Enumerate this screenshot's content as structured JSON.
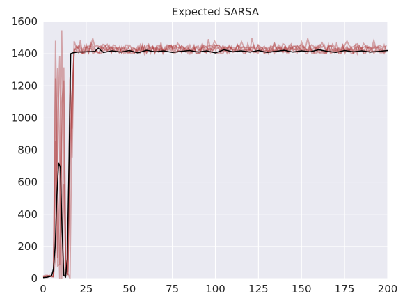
{
  "chart_data": {
    "type": "line",
    "title": "Expected SARSA",
    "xlabel": "",
    "ylabel": "",
    "xlim": [
      0,
      200
    ],
    "ylim": [
      0,
      1600
    ],
    "xticks": [
      "0",
      "25",
      "50",
      "75",
      "100",
      "125",
      "150",
      "175",
      "200"
    ],
    "yticks": [
      "0",
      "200",
      "400",
      "600",
      "800",
      "1000",
      "1200",
      "1400",
      "1600"
    ],
    "grid": true,
    "legend": "none",
    "colors": {
      "background": "#eaeaf2",
      "grid": "#ffffff",
      "mean": "#000000",
      "runs": "#b03a3a"
    },
    "mean_series": {
      "x": [
        0,
        2,
        4,
        5,
        6,
        7,
        8,
        9,
        10,
        11,
        12,
        13,
        14,
        15,
        16,
        17,
        20,
        25,
        30,
        32,
        35,
        40,
        45,
        50,
        55,
        60,
        65,
        70,
        75,
        80,
        85,
        90,
        95,
        100,
        105,
        110,
        115,
        120,
        125,
        130,
        135,
        140,
        145,
        150,
        155,
        160,
        165,
        170,
        175,
        180,
        185,
        190,
        195,
        200
      ],
      "y": [
        5,
        8,
        12,
        20,
        60,
        200,
        520,
        720,
        690,
        300,
        20,
        10,
        120,
        700,
        1400,
        1405,
        1410,
        1412,
        1415,
        1435,
        1408,
        1418,
        1410,
        1420,
        1405,
        1422,
        1412,
        1418,
        1408,
        1415,
        1420,
        1410,
        1418,
        1405,
        1425,
        1412,
        1418,
        1410,
        1420,
        1408,
        1415,
        1422,
        1410,
        1418,
        1412,
        1425,
        1415,
        1408,
        1420,
        1412,
        1418,
        1410,
        1415,
        1420
      ]
    },
    "run_series_count": 5
  }
}
